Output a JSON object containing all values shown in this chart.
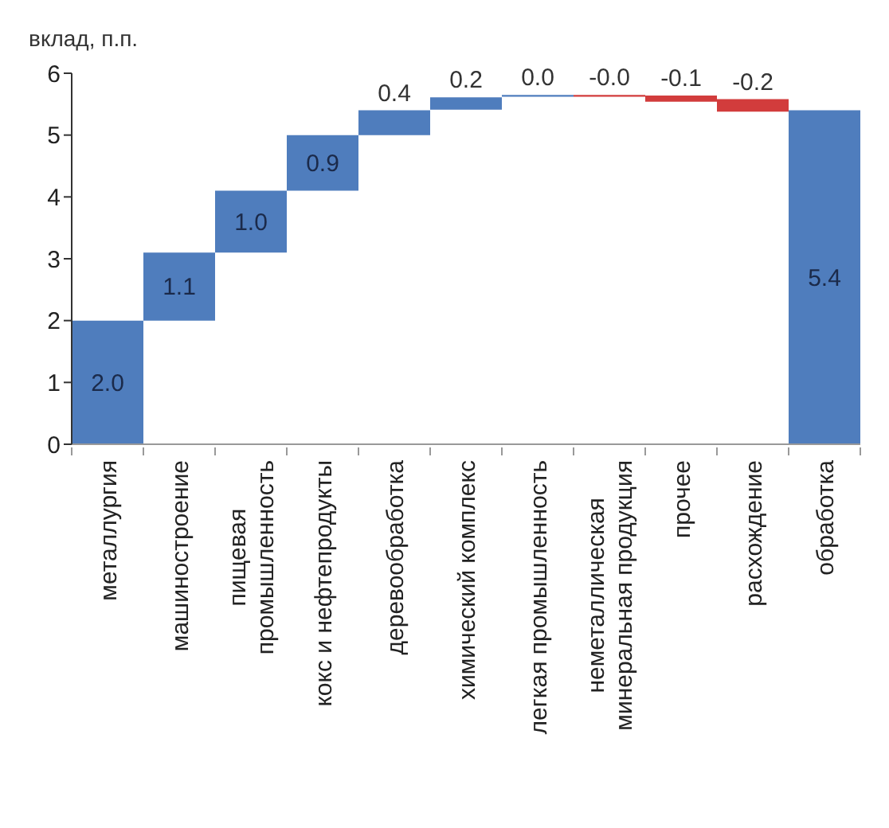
{
  "chart_data": {
    "type": "bar",
    "ylabel": "вклад, п.п.",
    "categories": [
      "металлургия",
      "машиностроение",
      "пищевая промышленность",
      "кокс и нефтепродукты",
      "деревообработка",
      "химический комплекс",
      "легкая промышленность",
      "неметаллическая минеральная продукция",
      "прочее",
      "расхождение",
      "обработка"
    ],
    "values": [
      2.0,
      1.1,
      1.0,
      0.9,
      0.4,
      0.2,
      0.03,
      -0.03,
      -0.1,
      -0.2,
      5.4
    ],
    "base": [
      0,
      2.0,
      3.1,
      4.1,
      5.0,
      5.41,
      5.62,
      5.65,
      5.64,
      5.58,
      0
    ],
    "colors": [
      "#4f7dbd",
      "#4f7dbd",
      "#4f7dbd",
      "#4f7dbd",
      "#4f7dbd",
      "#4f7dbd",
      "#4f7dbd",
      "#d23c3c",
      "#d23c3c",
      "#d23c3c",
      "#4f7dbd"
    ],
    "value_labels": [
      "2.0",
      "1.1",
      "1.0",
      "0.9",
      "0.4",
      "0.2",
      "0.0",
      "-0.0",
      "-0.1",
      "-0.2",
      "5.4"
    ],
    "ylim": [
      0,
      6
    ],
    "yticks": [
      0,
      1,
      2,
      3,
      4,
      5,
      6
    ]
  }
}
